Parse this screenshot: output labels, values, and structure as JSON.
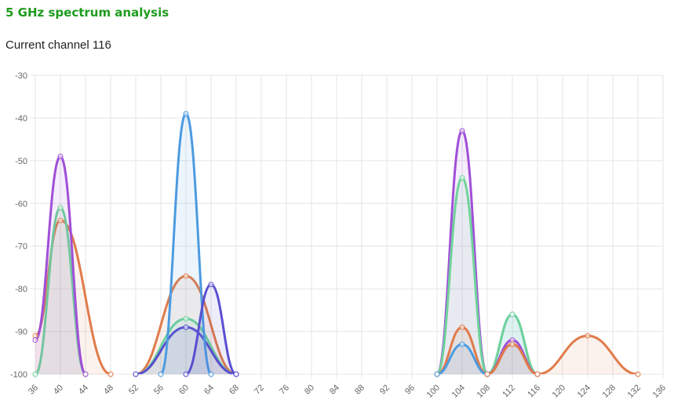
{
  "chart_data": {
    "type": "line",
    "title": "5 GHz spectrum analysis",
    "subtitle": "Current channel 116",
    "xlim": [
      36,
      136
    ],
    "xticks": [
      36,
      40,
      44,
      48,
      52,
      56,
      60,
      64,
      68,
      72,
      76,
      80,
      84,
      88,
      92,
      96,
      100,
      104,
      108,
      112,
      116,
      120,
      124,
      128,
      132,
      136
    ],
    "ylim": [
      -100,
      -30
    ],
    "yticks": [
      -30,
      -40,
      -50,
      -60,
      -70,
      -80,
      -90,
      -100
    ],
    "grid": true,
    "series": [
      {
        "color": "#e07b4a",
        "x": [
          36,
          40,
          48
        ],
        "values": [
          -91,
          -64,
          -100
        ]
      },
      {
        "color": "#6fd39a",
        "x": [
          36,
          40,
          44
        ],
        "values": [
          -100,
          -61,
          -100
        ]
      },
      {
        "color": "#a04fd8",
        "x": [
          36,
          40,
          44
        ],
        "values": [
          -92,
          -49,
          -100
        ]
      },
      {
        "color": "#e07b4a",
        "x": [
          52,
          60,
          68
        ],
        "values": [
          -100,
          -77,
          -100
        ]
      },
      {
        "color": "#6fd39a",
        "x": [
          52,
          60,
          68
        ],
        "values": [
          -100,
          -87,
          -100
        ]
      },
      {
        "color": "#5a4fd0",
        "x": [
          52,
          60,
          68
        ],
        "values": [
          -100,
          -89,
          -100
        ]
      },
      {
        "color": "#4c9be0",
        "x": [
          56,
          60,
          64
        ],
        "values": [
          -100,
          -39,
          -100
        ]
      },
      {
        "color": "#5a4fd0",
        "x": [
          60,
          64,
          68
        ],
        "values": [
          -100,
          -79,
          -100
        ]
      },
      {
        "color": "#a04fd8",
        "x": [
          100,
          104,
          108
        ],
        "values": [
          -100,
          -43,
          -100
        ]
      },
      {
        "color": "#6fd39a",
        "x": [
          100,
          104,
          108
        ],
        "values": [
          -100,
          -54,
          -100
        ]
      },
      {
        "color": "#e07b4a",
        "x": [
          100,
          104,
          108
        ],
        "values": [
          -100,
          -89,
          -100
        ]
      },
      {
        "color": "#4c9be0",
        "x": [
          100,
          104,
          108
        ],
        "values": [
          -100,
          -93,
          -100
        ]
      },
      {
        "color": "#4c9be0",
        "x": [
          108,
          112,
          116
        ],
        "values": [
          -100,
          -86,
          -100
        ]
      },
      {
        "color": "#6fd39a",
        "x": [
          108,
          112,
          116
        ],
        "values": [
          -100,
          -86,
          -100
        ]
      },
      {
        "color": "#a04fd8",
        "x": [
          108,
          112,
          116
        ],
        "values": [
          -100,
          -92,
          -100
        ]
      },
      {
        "color": "#e07b4a",
        "x": [
          108,
          112,
          116
        ],
        "values": [
          -100,
          -93,
          -100
        ]
      },
      {
        "color": "#e07b4a",
        "x": [
          116,
          124,
          132
        ],
        "values": [
          -100,
          -91,
          -100
        ]
      }
    ]
  }
}
